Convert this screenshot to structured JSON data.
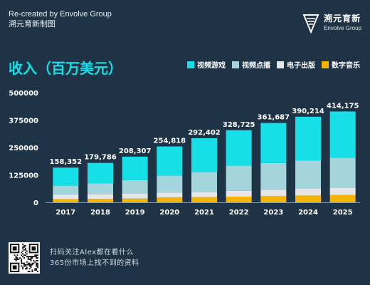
{
  "credit": {
    "line1": "Re-created by Envolve Group",
    "line2": "溯元育新制图"
  },
  "logo": {
    "name_cn": "溯元育新",
    "name_en": "Envolve Group"
  },
  "footer": {
    "line1": "扫码关注Alex都在看什么",
    "line2": "365份市场上找不到的资料"
  },
  "colors": {
    "background": "#1f3347",
    "title": "#16dfe8"
  },
  "chart_data": {
    "type": "bar",
    "stacked": true,
    "title": "收入（百万美元）",
    "categories": [
      "2017",
      "2018",
      "2019",
      "2020",
      "2021",
      "2022",
      "2023",
      "2024",
      "2025"
    ],
    "totals": [
      "158,352",
      "179,786",
      "208,307",
      "254,818",
      "292,402",
      "328,725",
      "361,687",
      "390,214",
      "414,175"
    ],
    "series": [
      {
        "name": "数字音乐",
        "color": "#f5b400",
        "values": [
          14000,
          16000,
          17000,
          22000,
          24000,
          26000,
          28000,
          31000,
          33000
        ]
      },
      {
        "name": "电子出版",
        "color": "#e6e6e6",
        "values": [
          22000,
          22000,
          22000,
          23000,
          24000,
          27000,
          29000,
          32000,
          34000
        ]
      },
      {
        "name": "视频点播",
        "color": "#a4d4dc",
        "values": [
          40000,
          48000,
          62000,
          77000,
          91000,
          114000,
          122000,
          127000,
          136000
        ]
      },
      {
        "name": "视频游戏",
        "color": "#16dfe8",
        "values": [
          82352,
          93786,
          107307,
          132818,
          153402,
          161725,
          182687,
          200214,
          211175
        ]
      }
    ],
    "legend_order": [
      3,
      2,
      1,
      0
    ],
    "y_ticks": [
      "0",
      "125000",
      "250000",
      "375000",
      "500000"
    ],
    "ylim": [
      0,
      500000
    ],
    "legend_position": "top-right",
    "grid": false
  }
}
